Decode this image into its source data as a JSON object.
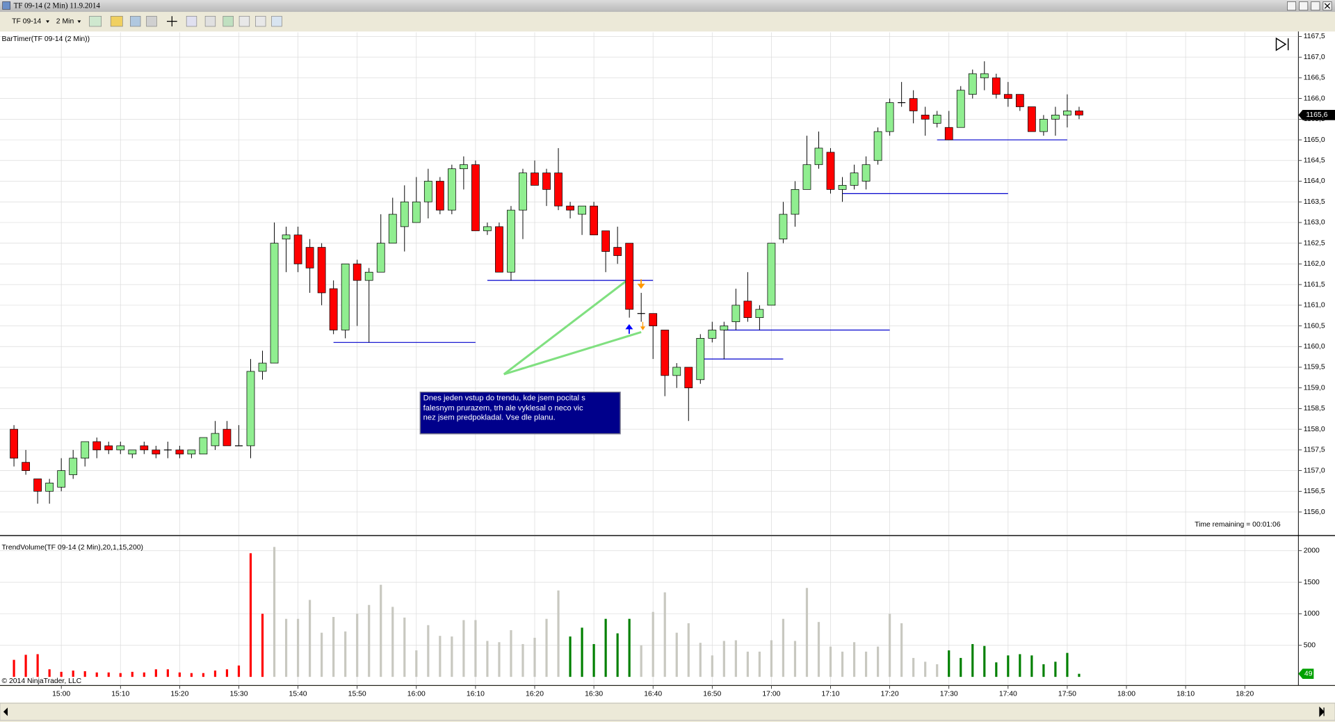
{
  "window": {
    "title": "TF 09-14 (2 Min)  11.9.2014",
    "instrument": "TF 09-14",
    "interval": "2 Min",
    "copyright": "© 2014 NinjaTrader, LLC"
  },
  "chart_data": [
    {
      "type": "candlestick",
      "indicator": "BarTimer(TF 09-14 (2 Min))",
      "time_remaining": "Time remaining = 00:01:06",
      "annotation_lines_text": [
        "Dnes jeden vstup do trendu, kde jsem pocital s",
        "falesnym prurazem, trh ale vyklesal o neco vic",
        "nez jsem predpokladal. Vse dle planu."
      ],
      "up_color": "#90ee90",
      "down_color": "#ff0000",
      "grid": true,
      "last_label": "1165,6",
      "xlim": [
        889.64,
        1109.06
      ],
      "xticks": [
        {
          "value": 900,
          "label": "15:00"
        },
        {
          "value": 910,
          "label": "15:10"
        },
        {
          "value": 920,
          "label": "15:20"
        },
        {
          "value": 930,
          "label": "15:30"
        },
        {
          "value": 940,
          "label": "15:40"
        },
        {
          "value": 950,
          "label": "15:50"
        },
        {
          "value": 960,
          "label": "16:00"
        },
        {
          "value": 970,
          "label": "16:10"
        },
        {
          "value": 980,
          "label": "16:20"
        },
        {
          "value": 990,
          "label": "16:30"
        },
        {
          "value": 1000,
          "label": "16:40"
        },
        {
          "value": 1010,
          "label": "16:50"
        },
        {
          "value": 1020,
          "label": "17:00"
        },
        {
          "value": 1030,
          "label": "17:10"
        },
        {
          "value": 1040,
          "label": "17:20"
        },
        {
          "value": 1050,
          "label": "17:30"
        },
        {
          "value": 1060,
          "label": "17:40"
        },
        {
          "value": 1070,
          "label": "17:50"
        },
        {
          "value": 1080,
          "label": "18:00"
        },
        {
          "value": 1090,
          "label": "18:10"
        },
        {
          "value": 1100,
          "label": "18:20"
        }
      ],
      "ylim": [
        1155.45,
        1167.6
      ],
      "yticks": [
        {
          "value": 1156,
          "label": "1156,0"
        },
        {
          "value": 1156.5,
          "label": "1156,5"
        },
        {
          "value": 1157,
          "label": "1157,0"
        },
        {
          "value": 1157.5,
          "label": "1157,5"
        },
        {
          "value": 1158,
          "label": "1158,0"
        },
        {
          "value": 1158.5,
          "label": "1158,5"
        },
        {
          "value": 1159,
          "label": "1159,0"
        },
        {
          "value": 1159.5,
          "label": "1159,5"
        },
        {
          "value": 1160,
          "label": "1160,0"
        },
        {
          "value": 1160.5,
          "label": "1160,5"
        },
        {
          "value": 1161,
          "label": "1161,0"
        },
        {
          "value": 1161.5,
          "label": "1161,5"
        },
        {
          "value": 1162,
          "label": "1162,0"
        },
        {
          "value": 1162.5,
          "label": "1162,5"
        },
        {
          "value": 1163,
          "label": "1163,0"
        },
        {
          "value": 1163.5,
          "label": "1163,5"
        },
        {
          "value": 1164,
          "label": "1164,0"
        },
        {
          "value": 1164.5,
          "label": "1164,5"
        },
        {
          "value": 1165,
          "label": "1165,0"
        },
        {
          "value": 1165.5,
          "label": "1165,5"
        },
        {
          "value": 1166,
          "label": "1166,0"
        },
        {
          "value": 1166.5,
          "label": "1166,5"
        },
        {
          "value": 1167,
          "label": "1167,0"
        },
        {
          "value": 1167.5,
          "label": "1167,5"
        }
      ],
      "x": [
        892,
        894,
        896,
        898,
        900,
        902,
        904,
        906,
        908,
        910,
        912,
        914,
        916,
        918,
        920,
        922,
        924,
        926,
        928,
        930,
        932,
        934,
        936,
        938,
        940,
        942,
        944,
        946,
        948,
        950,
        952,
        954,
        956,
        958,
        960,
        962,
        964,
        966,
        968,
        970,
        972,
        974,
        976,
        978,
        980,
        982,
        984,
        986,
        988,
        990,
        992,
        994,
        996,
        998,
        1000,
        1002,
        1004,
        1006,
        1008,
        1010,
        1012,
        1014,
        1016,
        1018,
        1020,
        1022,
        1024,
        1026,
        1028,
        1030,
        1032,
        1034,
        1036,
        1038,
        1040,
        1042,
        1044,
        1046,
        1048,
        1050,
        1052,
        1054,
        1056,
        1058,
        1060,
        1062,
        1064,
        1066,
        1068,
        1070,
        1072
      ],
      "open": [
        1158.0,
        1157.2,
        1156.8,
        1156.5,
        1156.6,
        1156.9,
        1157.3,
        1157.7,
        1157.6,
        1157.5,
        1157.4,
        1157.6,
        1157.5,
        1157.5,
        1157.5,
        1157.4,
        1157.4,
        1157.6,
        1158.0,
        1157.6,
        1157.6,
        1159.4,
        1159.6,
        1162.6,
        1162.7,
        1162.4,
        1162.4,
        1161.4,
        1160.4,
        1162.0,
        1161.6,
        1161.8,
        1162.5,
        1162.9,
        1163.0,
        1163.5,
        1164.0,
        1163.3,
        1164.3,
        1164.4,
        1162.8,
        1162.9,
        1161.8,
        1163.3,
        1164.2,
        1164.2,
        1164.2,
        1163.4,
        1163.2,
        1163.4,
        1162.8,
        1162.4,
        1162.5,
        1160.8,
        1160.8,
        1160.4,
        1159.3,
        1159.5,
        1159.2,
        1160.2,
        1160.4,
        1160.6,
        1161.1,
        1160.7,
        1161.0,
        1162.6,
        1163.2,
        1163.8,
        1164.4,
        1164.7,
        1163.8,
        1163.9,
        1164.0,
        1164.5,
        1165.2,
        1165.9,
        1166.0,
        1165.6,
        1165.4,
        1165.3,
        1165.3,
        1166.1,
        1166.5,
        1166.5,
        1166.1,
        1166.1,
        1165.8,
        1165.2,
        1165.5,
        1165.6,
        1165.7
      ],
      "high": [
        1158.1,
        1157.5,
        1156.8,
        1156.8,
        1157.3,
        1157.5,
        1157.7,
        1157.8,
        1157.7,
        1157.7,
        1157.5,
        1157.7,
        1157.6,
        1157.7,
        1157.6,
        1157.5,
        1157.8,
        1158.2,
        1158.2,
        1158.1,
        1159.7,
        1159.9,
        1163.0,
        1162.9,
        1162.9,
        1162.6,
        1162.5,
        1161.6,
        1162.0,
        1162.1,
        1161.9,
        1163.2,
        1163.6,
        1163.9,
        1164.1,
        1164.3,
        1164.1,
        1164.4,
        1164.6,
        1164.5,
        1163.0,
        1163.0,
        1163.4,
        1164.3,
        1164.5,
        1164.3,
        1164.8,
        1163.5,
        1163.4,
        1163.5,
        1162.8,
        1162.9,
        1162.5,
        1161.3,
        1160.8,
        1160.4,
        1159.6,
        1159.5,
        1160.3,
        1160.6,
        1160.6,
        1161.4,
        1161.8,
        1161.0,
        1162.5,
        1163.5,
        1164.0,
        1165.1,
        1165.2,
        1164.8,
        1164.1,
        1164.4,
        1164.6,
        1165.3,
        1166.0,
        1166.4,
        1166.2,
        1165.8,
        1165.7,
        1165.7,
        1166.3,
        1166.7,
        1166.9,
        1166.6,
        1166.4,
        1166.1,
        1165.8,
        1165.6,
        1165.8,
        1166.1,
        1165.8
      ],
      "low": [
        1157.1,
        1156.9,
        1156.2,
        1156.2,
        1156.5,
        1156.8,
        1157.1,
        1157.3,
        1157.4,
        1157.4,
        1157.3,
        1157.4,
        1157.3,
        1157.3,
        1157.3,
        1157.3,
        1157.4,
        1157.5,
        1157.6,
        1157.6,
        1157.3,
        1159.2,
        1159.6,
        1161.8,
        1161.8,
        1161.3,
        1161.0,
        1160.3,
        1160.2,
        1160.5,
        1160.1,
        1161.8,
        1162.5,
        1162.3,
        1163.0,
        1163.1,
        1163.2,
        1163.2,
        1163.8,
        1162.8,
        1162.7,
        1161.8,
        1161.6,
        1162.6,
        1163.9,
        1163.4,
        1163.3,
        1163.1,
        1162.7,
        1162.7,
        1161.8,
        1162.0,
        1160.7,
        1160.6,
        1159.7,
        1158.8,
        1159.0,
        1158.2,
        1159.1,
        1160.1,
        1159.7,
        1160.4,
        1160.6,
        1160.4,
        1161.0,
        1162.5,
        1162.9,
        1163.8,
        1164.3,
        1163.7,
        1163.5,
        1163.8,
        1163.8,
        1164.4,
        1165.1,
        1165.8,
        1165.4,
        1165.1,
        1165.3,
        1165.0,
        1165.3,
        1166.0,
        1166.2,
        1166.0,
        1165.8,
        1165.7,
        1165.2,
        1165.1,
        1165.1,
        1165.3,
        1165.5
      ],
      "close": [
        1157.3,
        1157.0,
        1156.5,
        1156.7,
        1157.0,
        1157.3,
        1157.7,
        1157.5,
        1157.5,
        1157.6,
        1157.5,
        1157.5,
        1157.4,
        1157.5,
        1157.4,
        1157.5,
        1157.8,
        1157.9,
        1157.6,
        1157.6,
        1159.4,
        1159.6,
        1162.5,
        1162.7,
        1162.0,
        1161.9,
        1161.3,
        1160.4,
        1162.0,
        1161.6,
        1161.8,
        1162.5,
        1163.2,
        1163.5,
        1163.5,
        1164.0,
        1163.3,
        1164.3,
        1164.4,
        1162.8,
        1162.9,
        1161.8,
        1163.3,
        1164.2,
        1163.9,
        1163.8,
        1163.4,
        1163.3,
        1163.4,
        1162.7,
        1162.3,
        1162.2,
        1160.9,
        1160.8,
        1160.5,
        1159.3,
        1159.5,
        1159.0,
        1160.2,
        1160.4,
        1160.5,
        1161.0,
        1160.7,
        1160.9,
        1162.5,
        1163.2,
        1163.8,
        1164.4,
        1164.8,
        1163.8,
        1163.9,
        1164.2,
        1164.4,
        1165.2,
        1165.9,
        1165.9,
        1165.7,
        1165.5,
        1165.6,
        1165.0,
        1166.2,
        1166.6,
        1166.6,
        1166.1,
        1166.0,
        1165.8,
        1165.2,
        1165.5,
        1165.6,
        1165.7,
        1165.6
      ],
      "support_color": "#0000cd",
      "support_lines": [
        {
          "x": [
            946,
            970
          ],
          "y": 1160.1
        },
        {
          "x": [
            972,
            1000
          ],
          "y": 1161.6
        },
        {
          "x": [
            1008,
            1022
          ],
          "y": 1159.7
        },
        {
          "x": [
            1012,
            1040
          ],
          "y": 1160.4
        },
        {
          "x": [
            1032,
            1060
          ],
          "y": 1163.7
        },
        {
          "x": [
            1048,
            1070
          ],
          "y": 1165.0
        }
      ],
      "arrow_color": "#80e080",
      "arrow_lines": [
        {
          "x": [
            974.8,
            995.5
          ],
          "y": [
            1159.33,
            1161.59
          ]
        },
        {
          "x": [
            974.8,
            998
          ],
          "y": [
            1159.33,
            1160.35
          ]
        }
      ]
    },
    {
      "type": "bar",
      "title": "TrendVolume(TF 09-14 (2 Min),20,1,15,200)",
      "ylim": [
        0,
        2200
      ],
      "yticks": [
        500,
        1000,
        1500,
        2000
      ],
      "values": [
        270,
        350,
        360,
        120,
        80,
        100,
        90,
        70,
        70,
        60,
        80,
        70,
        120,
        120,
        70,
        60,
        60,
        100,
        120,
        180,
        1960,
        1000,
        2060,
        920,
        920,
        1220,
        700,
        950,
        720,
        1000,
        1140,
        1460,
        1110,
        940,
        420,
        820,
        650,
        640,
        900,
        900,
        570,
        550,
        740,
        520,
        620,
        920,
        1370,
        640,
        780,
        520,
        920,
        690,
        920,
        500,
        1030,
        1340,
        700,
        850,
        540,
        340,
        570,
        580,
        400,
        400,
        580,
        920,
        570,
        1410,
        870,
        480,
        400,
        550,
        400,
        480,
        1000,
        850,
        300,
        240,
        200,
        420,
        300,
        520,
        490,
        230,
        340,
        360,
        340,
        200,
        240,
        380,
        49
      ],
      "colors": [
        "#ff0000",
        "#ff0000",
        "#ff0000",
        "#ff0000",
        "#ff0000",
        "#ff0000",
        "#ff0000",
        "#ff0000",
        "#ff0000",
        "#ff0000",
        "#ff0000",
        "#ff0000",
        "#ff0000",
        "#ff0000",
        "#ff0000",
        "#ff0000",
        "#ff0000",
        "#ff0000",
        "#ff0000",
        "#ff0000",
        "#ff0000",
        "#ff0000",
        "#c8c8c0",
        "#c8c8c0",
        "#c8c8c0",
        "#c8c8c0",
        "#c8c8c0",
        "#c8c8c0",
        "#c8c8c0",
        "#c8c8c0",
        "#c8c8c0",
        "#c8c8c0",
        "#c8c8c0",
        "#c8c8c0",
        "#c8c8c0",
        "#c8c8c0",
        "#c8c8c0",
        "#c8c8c0",
        "#c8c8c0",
        "#c8c8c0",
        "#c8c8c0",
        "#c8c8c0",
        "#c8c8c0",
        "#c8c8c0",
        "#c8c8c0",
        "#c8c8c0",
        "#c8c8c0",
        "#008000",
        "#008000",
        "#008000",
        "#008000",
        "#008000",
        "#008000",
        "#c8c8c0",
        "#c8c8c0",
        "#c8c8c0",
        "#c8c8c0",
        "#c8c8c0",
        "#c8c8c0",
        "#c8c8c0",
        "#c8c8c0",
        "#c8c8c0",
        "#c8c8c0",
        "#c8c8c0",
        "#c8c8c0",
        "#c8c8c0",
        "#c8c8c0",
        "#c8c8c0",
        "#c8c8c0",
        "#c8c8c0",
        "#c8c8c0",
        "#c8c8c0",
        "#c8c8c0",
        "#c8c8c0",
        "#c8c8c0",
        "#c8c8c0",
        "#c8c8c0",
        "#c8c8c0",
        "#c8c8c0",
        "#008000",
        "#008000",
        "#008000",
        "#008000",
        "#008000",
        "#008000",
        "#008000",
        "#008000",
        "#008000",
        "#008000",
        "#008000",
        "#008000"
      ]
    }
  ]
}
